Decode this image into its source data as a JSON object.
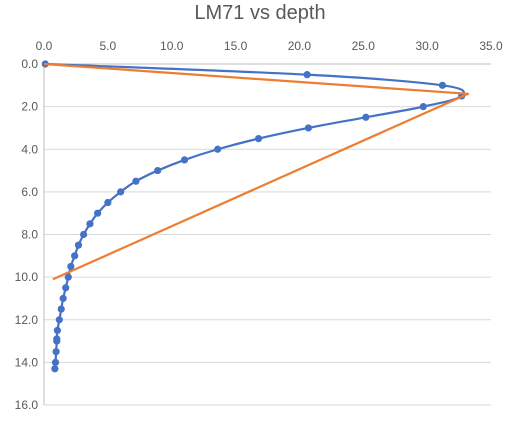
{
  "chart_data": {
    "type": "scatter",
    "title": "LM71 vs depth",
    "xlabel": "",
    "ylabel": "",
    "xlim": [
      0,
      35
    ],
    "ylim": [
      0,
      16
    ],
    "y_axis_reversed": true,
    "x_axis_position": "top",
    "x_ticks": [
      "0.0",
      "5.0",
      "10.0",
      "15.0",
      "20.0",
      "25.0",
      "30.0",
      "35.0"
    ],
    "y_ticks": [
      "0.0",
      "2.0",
      "4.0",
      "6.0",
      "8.0",
      "10.0",
      "12.0",
      "14.0",
      "16.0"
    ],
    "grid": "horizontal",
    "legend": "none",
    "series": [
      {
        "kind": "markers+smooth-line",
        "color": "#4472C4",
        "points": [
          [
            0.1,
            0.0
          ],
          [
            20.6,
            0.5
          ],
          [
            31.2,
            1.0
          ],
          [
            32.7,
            1.5
          ],
          [
            29.7,
            2.0
          ],
          [
            25.2,
            2.5
          ],
          [
            20.7,
            3.0
          ],
          [
            16.8,
            3.5
          ],
          [
            13.6,
            4.0
          ],
          [
            11.0,
            4.5
          ],
          [
            8.9,
            5.0
          ],
          [
            7.2,
            5.5
          ],
          [
            6.0,
            6.0
          ],
          [
            5.0,
            6.5
          ],
          [
            4.2,
            7.0
          ],
          [
            3.6,
            7.5
          ],
          [
            3.1,
            8.0
          ],
          [
            2.7,
            8.5
          ],
          [
            2.4,
            9.0
          ],
          [
            2.1,
            9.5
          ],
          [
            1.9,
            10.0
          ],
          [
            1.7,
            10.5
          ],
          [
            1.5,
            11.0
          ],
          [
            1.35,
            11.5
          ],
          [
            1.2,
            12.0
          ],
          [
            1.05,
            12.5
          ],
          [
            1.0,
            12.9
          ],
          [
            1.0,
            13.0
          ],
          [
            0.95,
            13.5
          ],
          [
            0.9,
            14.0
          ],
          [
            0.85,
            14.3
          ]
        ]
      },
      {
        "kind": "line",
        "color": "#ED7D31",
        "points": [
          [
            0.0,
            0.0
          ],
          [
            33.2,
            1.4
          ],
          [
            0.7,
            10.1
          ]
        ]
      }
    ]
  }
}
